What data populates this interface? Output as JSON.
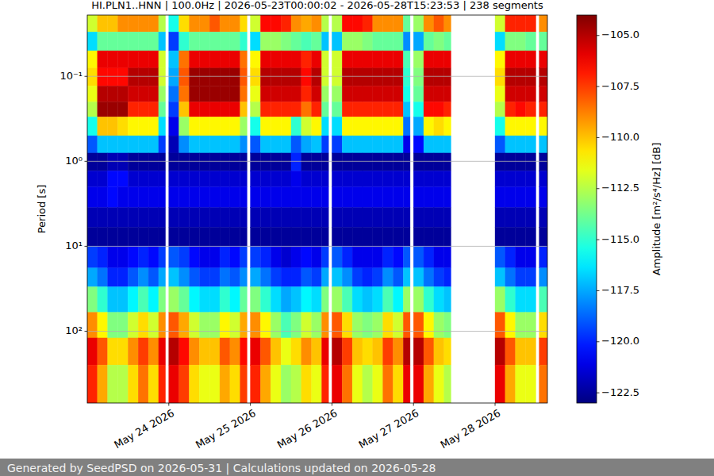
{
  "chart_data": {
    "type": "heatmap",
    "title": "HI.PLN1..HNN | 100.0Hz | 2026-05-23T00:00:02 - 2026-05-28T15:23:53 | 238 segments",
    "y_label": "Period [s]",
    "footer": "Generated by SeedPSD on 2026-05-31 | Calculations updated on 2026-05-28",
    "log": "y",
    "grid": true,
    "xlim": [
      "2026-05-23T00:00:02",
      "2026-05-28T15:23:53"
    ],
    "ylim": [
      0.019,
      700
    ],
    "xticks": [
      {
        "value": "2026-05-24T00:00:00",
        "label": "May 24 2026"
      },
      {
        "value": "2026-05-25T00:00:00",
        "label": "May 25 2026"
      },
      {
        "value": "2026-05-26T00:00:00",
        "label": "May 26 2026"
      },
      {
        "value": "2026-05-27T00:00:00",
        "label": "May 27 2026"
      },
      {
        "value": "2026-05-28T00:00:00",
        "label": "May 28 2026"
      }
    ],
    "yticks": [
      {
        "value": 0.1,
        "label": "10⁻¹"
      },
      {
        "value": 1,
        "label": "10⁰"
      },
      {
        "value": 10,
        "label": "10¹"
      },
      {
        "value": 100,
        "label": "10²"
      }
    ],
    "colorbar_label": "Amplitude [m²/s⁴/Hz] [dB]",
    "colorbar_range": [
      -123,
      -104
    ],
    "colorbar_ticks": [
      {
        "value": -105,
        "label": "−105.0"
      },
      {
        "value": -107.5,
        "label": "−107.5"
      },
      {
        "value": -110,
        "label": "−110.0"
      },
      {
        "value": -112.5,
        "label": "−112.5"
      },
      {
        "value": -115,
        "label": "−115.0"
      },
      {
        "value": -117.5,
        "label": "−117.5"
      },
      {
        "value": -120,
        "label": "−120.0"
      },
      {
        "value": -122.5,
        "label": "−122.5"
      }
    ],
    "x": [
      "2026-05-23T00:00:02",
      "2026-05-23T03:00:00",
      "2026-05-23T06:00:00",
      "2026-05-23T09:00:00",
      "2026-05-23T12:00:00",
      "2026-05-23T15:00:00",
      "2026-05-23T18:00:00",
      "2026-05-23T21:00:00",
      "2026-05-23T23:00:00",
      "2026-05-24T00:00:00",
      "2026-05-24T03:00:00",
      "2026-05-24T06:00:00",
      "2026-05-24T09:00:00",
      "2026-05-24T12:00:00",
      "2026-05-24T15:00:00",
      "2026-05-24T18:00:00",
      "2026-05-24T21:00:00",
      "2026-05-24T23:00:00",
      "2026-05-25T00:00:00",
      "2026-05-25T03:00:00",
      "2026-05-25T06:00:00",
      "2026-05-25T09:00:00",
      "2026-05-25T12:00:00",
      "2026-05-25T15:00:00",
      "2026-05-25T18:00:00",
      "2026-05-25T21:00:00",
      "2026-05-25T23:00:00",
      "2026-05-26T00:00:00",
      "2026-05-26T03:00:00",
      "2026-05-26T06:00:00",
      "2026-05-26T09:00:00",
      "2026-05-26T12:00:00",
      "2026-05-26T15:00:00",
      "2026-05-26T18:00:00",
      "2026-05-26T21:00:00",
      "2026-05-26T23:00:00",
      "2026-05-27T00:00:00",
      "2026-05-27T03:00:00",
      "2026-05-27T06:00:00",
      "2026-05-27T09:00:00",
      "2026-05-27T11:00:00",
      "2026-05-28T00:00:00",
      "2026-05-28T03:00:00",
      "2026-05-28T06:00:00",
      "2026-05-28T09:00:00",
      "2026-05-28T12:00:00",
      "2026-05-28T13:00:00",
      "2026-05-28T15:23:53"
    ],
    "y": [
      0.019,
      0.03,
      0.05,
      0.08,
      0.13,
      0.2,
      0.3,
      0.5,
      0.8,
      1.3,
      2,
      3.5,
      6,
      10,
      18,
      30,
      60,
      120,
      250,
      700
    ],
    "cells": [
      [
        -112,
        -110,
        -110,
        -109,
        -109,
        -109,
        -109,
        -112.5,
        null,
        -115.5,
        -110.5,
        -109,
        -109,
        -108,
        -109,
        -109,
        -110.5,
        null,
        -112,
        -106.5,
        -106.5,
        -107,
        -109,
        -109.5,
        -109,
        -112.5,
        null,
        -112.5,
        -106.5,
        -106.5,
        -107,
        -109,
        -109,
        -109,
        -114,
        null,
        -113,
        -109,
        -108,
        -109,
        null,
        -112,
        -107,
        -107,
        -107,
        null,
        -109
      ],
      [
        -116.5,
        -114,
        -114,
        -114,
        -114,
        -114,
        -114,
        -117,
        null,
        -119.5,
        -115,
        -114,
        -114,
        -114,
        -114,
        -114,
        -115,
        null,
        -116.5,
        -113,
        -113,
        -113.5,
        -114,
        -114.5,
        -114,
        -117,
        null,
        -117,
        -113,
        -113,
        -113.5,
        -114,
        -114,
        -114,
        -118,
        null,
        -117.5,
        -114,
        -113.5,
        -114,
        null,
        -116.5,
        -113.5,
        -113.5,
        -114,
        null,
        -114
      ],
      [
        -111,
        -106,
        -106,
        -106,
        -106,
        -106,
        -106,
        -112,
        null,
        -117,
        -108.5,
        -106,
        -106,
        -106,
        -106,
        -106,
        -108.5,
        null,
        -111,
        -106,
        -106,
        -106,
        -106,
        -107,
        -106,
        -112,
        null,
        -112,
        -106,
        -106,
        -106,
        -106,
        -106,
        -106,
        -114.5,
        null,
        -113,
        -106,
        -106,
        -106,
        null,
        -111,
        -106,
        -106,
        -106,
        null,
        -106
      ],
      [
        -110.5,
        -106.5,
        -106.5,
        -106.5,
        -105,
        -105,
        -105,
        -112,
        null,
        -117.5,
        -108,
        -104.5,
        -104.5,
        -104.5,
        -104.5,
        -104.5,
        -108,
        null,
        -110.5,
        -105,
        -105,
        -105,
        -105,
        -106.5,
        -105,
        -112,
        null,
        -112,
        -105,
        -105,
        -105,
        -105,
        -105,
        -105,
        -115,
        null,
        -113.5,
        -105,
        -105,
        -105,
        null,
        -110.5,
        -105,
        -105,
        -105,
        null,
        -105
      ],
      [
        -111.5,
        -105,
        -105,
        -105,
        -105.5,
        -105.5,
        -105.5,
        -113,
        null,
        -118.5,
        -108.5,
        -104.5,
        -104.5,
        -104.5,
        -104.5,
        -104.5,
        -108.5,
        null,
        -111.5,
        -105.5,
        -105.5,
        -105.5,
        -105.5,
        -107,
        -105.5,
        -113,
        null,
        -113,
        -105.5,
        -105.5,
        -105.5,
        -105.5,
        -105.5,
        -105.5,
        -115.5,
        null,
        -114,
        -105.5,
        -105.5,
        -105.5,
        null,
        -111.5,
        -105.5,
        -105.5,
        -105.5,
        null,
        -105.5
      ],
      [
        -112.5,
        -104.5,
        -104.5,
        -104.5,
        -107,
        -107,
        -107,
        -114,
        null,
        -119.5,
        -110,
        -106,
        -106,
        -106,
        -106,
        -106,
        -110,
        null,
        -112.5,
        -107,
        -107,
        -107,
        -107,
        -108.5,
        -107,
        -114,
        null,
        -114,
        -107,
        -107,
        -107,
        -107,
        -107,
        -107,
        -117,
        null,
        -115.5,
        -106.5,
        -106.5,
        -107,
        null,
        -112.5,
        -107,
        -106.5,
        -107,
        null,
        -107
      ],
      [
        -115.5,
        -110,
        -110,
        -110.5,
        -111,
        -111,
        -111,
        -116.5,
        null,
        -121,
        -113,
        -111,
        -111,
        -111,
        -111,
        -111,
        -113,
        null,
        -115.5,
        -111,
        -111,
        -111,
        -115,
        -112,
        -111,
        -116.5,
        null,
        -116.5,
        -111,
        -111,
        -111,
        -111,
        -111,
        -111,
        -118.5,
        null,
        -117.5,
        -111,
        -110.5,
        -111,
        null,
        -115.5,
        -111,
        -111,
        -111,
        null,
        -111
      ],
      [
        -119,
        -117,
        -117,
        -117,
        -117,
        -117,
        -117,
        -119.5,
        null,
        -122,
        -118,
        -117,
        -117,
        -117,
        -117,
        -117,
        -118,
        null,
        -119,
        -117,
        -117,
        -117,
        -119,
        -117.5,
        -117,
        -119.5,
        null,
        -119.5,
        -117,
        -117,
        -117,
        -117,
        -117,
        -117,
        -121,
        null,
        -120.5,
        -117,
        -117,
        -117,
        null,
        -119,
        -117,
        -117,
        -117,
        null,
        -117
      ],
      [
        -122.5,
        -122.5,
        -122,
        -122,
        -122.5,
        -122.5,
        -122.5,
        -122.5,
        null,
        -122.5,
        -122.5,
        -122.5,
        -122.5,
        -122.5,
        -122.5,
        -122.5,
        -122.5,
        null,
        -122.5,
        -122.5,
        -122.5,
        -122.5,
        -120,
        -122.5,
        -122.5,
        -122.5,
        null,
        -122.5,
        -122.5,
        -122.5,
        -122.5,
        -122.5,
        -122.5,
        -122.5,
        -122.5,
        null,
        -122.5,
        -122.5,
        -122.5,
        -122.5,
        null,
        -122.5,
        -122.5,
        -122.5,
        -122.5,
        null,
        -122.5
      ],
      [
        -121.5,
        -121.5,
        -120.5,
        -120.5,
        -121.5,
        -121.5,
        -121.5,
        -121.5,
        null,
        -121.5,
        -121.5,
        -121.5,
        -121.5,
        -121.5,
        -121.5,
        -121.5,
        -121.5,
        null,
        -121.5,
        -121.5,
        -121.5,
        -121.5,
        -121,
        -121.5,
        -121.5,
        -121.5,
        null,
        -121.5,
        -121.5,
        -121.5,
        -121.5,
        -121.5,
        -121.5,
        -121.5,
        -121.5,
        null,
        -121.5,
        -121.5,
        -121.5,
        -121.5,
        null,
        -121.5,
        -121.5,
        -121.5,
        -121.5,
        null,
        -121.5
      ],
      [
        -121,
        -121,
        -120.5,
        -121,
        -121,
        -121,
        -121,
        -121,
        null,
        -121,
        -121,
        -121,
        -121,
        -121,
        -121,
        -121,
        -121,
        null,
        -121,
        -121,
        -121,
        -121,
        -121,
        -121,
        -121,
        -121,
        null,
        -121,
        -121,
        -121,
        -121,
        -121,
        -121,
        -121,
        -121,
        null,
        -121,
        -121,
        -121,
        -121,
        null,
        -121,
        -121,
        -121,
        -121,
        null,
        -121
      ],
      [
        -122,
        -122,
        -122,
        -122,
        -122,
        -122,
        -122,
        -122,
        null,
        -122,
        -122,
        -122,
        -122,
        -122,
        -122,
        -122,
        -122,
        null,
        -122,
        -122,
        -122,
        -122,
        -122,
        -122,
        -122,
        -122,
        null,
        -122,
        -122,
        -122,
        -122,
        -122,
        -122,
        -122,
        -122,
        null,
        -122,
        -122,
        -122,
        -122,
        null,
        -122,
        -122,
        -122,
        -122,
        null,
        -122
      ],
      [
        -122.5,
        -122.5,
        -122.5,
        -122.5,
        -122.5,
        -122.5,
        -122.5,
        -122.5,
        null,
        -122.5,
        -122.5,
        -122.5,
        -122.5,
        -122.5,
        -122.5,
        -122.5,
        -122.5,
        null,
        -122.5,
        -122.5,
        -122.5,
        -122.5,
        -122.5,
        -122.5,
        -122.5,
        -122.5,
        null,
        -122.5,
        -122.5,
        -122.5,
        -122.5,
        -122.5,
        -122.5,
        -122.5,
        -122.5,
        null,
        -122.5,
        -122.5,
        -122.5,
        -122.5,
        null,
        -122.5,
        -122.5,
        -122.5,
        -122.5,
        null,
        -122.5
      ],
      [
        -119.5,
        -120,
        -121,
        -121,
        -120.5,
        -120,
        -120.5,
        -119.5,
        null,
        -119,
        -119.5,
        -120.5,
        -121,
        -121,
        -120,
        -120.5,
        -119.5,
        null,
        -119.5,
        -120,
        -121,
        -121.5,
        -121,
        -120.5,
        -121,
        -119.5,
        null,
        -119,
        -120,
        -121,
        -121,
        -121,
        -120,
        -120.5,
        -119,
        null,
        -119,
        -120,
        -121,
        -121,
        null,
        -119,
        -120,
        -121,
        -121,
        null,
        -120
      ],
      [
        -117.5,
        -118.5,
        -120,
        -120,
        -119,
        -118,
        -119,
        -117.5,
        null,
        -117,
        -118,
        -119,
        -119.5,
        -119.5,
        -118.5,
        -119,
        -118,
        null,
        -117.5,
        -118.5,
        -119.5,
        -120,
        -120,
        -119,
        -119.5,
        -117.5,
        null,
        -117,
        -118,
        -119.5,
        -120,
        -119.5,
        -118,
        -119,
        -117,
        null,
        -117,
        -118.5,
        -119.5,
        -120,
        null,
        -117,
        -118.5,
        -119.5,
        -119.5,
        null,
        -118
      ],
      [
        -113.5,
        -115,
        -117,
        -117,
        -116,
        -114.5,
        -116,
        -113.5,
        null,
        -113,
        -114,
        -116,
        -116.5,
        -116.5,
        -115,
        -116,
        -114,
        null,
        -113.5,
        -115,
        -116.5,
        -117.5,
        -117,
        -116,
        -116.5,
        -113.5,
        null,
        -113,
        -114.5,
        -116.5,
        -117,
        -116.5,
        -114.5,
        -116,
        -113,
        null,
        -113,
        -115,
        -116.5,
        -117,
        null,
        -113,
        -115,
        -116.5,
        -116.5,
        null,
        -114.5
      ],
      [
        -109,
        -111,
        -113.5,
        -113.5,
        -112,
        -110.5,
        -112,
        -109,
        null,
        -108,
        -109.5,
        -112,
        -113,
        -113,
        -111,
        -112,
        -109.5,
        null,
        -109,
        -111,
        -113,
        -114.5,
        -113.5,
        -112,
        -113,
        -109,
        null,
        -108,
        -110.5,
        -113,
        -113.5,
        -113,
        -110.5,
        -112,
        -108,
        null,
        -108,
        -111,
        -113,
        -113.5,
        null,
        -108,
        -111,
        -113,
        -113,
        null,
        -110.5
      ],
      [
        -106,
        -108,
        -110.5,
        -110.5,
        -109,
        -107.5,
        -109,
        -106,
        null,
        -105,
        -106.5,
        -109,
        -110,
        -110,
        -108,
        -109,
        -106.5,
        null,
        -106,
        -108,
        -110,
        -111.5,
        -110.5,
        -109,
        -110,
        -106,
        null,
        -105,
        -107.5,
        -110,
        -110.5,
        -110,
        -107.5,
        -109,
        -105,
        null,
        -105,
        -108,
        -110,
        -110.5,
        null,
        -105,
        -108,
        -110,
        -110,
        null,
        -107.5
      ],
      [
        -107,
        -109.5,
        -112.5,
        -112.5,
        -110.5,
        -108.5,
        -110.5,
        -107,
        null,
        -106,
        -107.5,
        -110.5,
        -111.5,
        -111.5,
        -109.5,
        -110.5,
        -107.5,
        null,
        -107,
        -109.5,
        -111.5,
        -113,
        -112.5,
        -110.5,
        -111.5,
        -107,
        null,
        -106,
        -108.5,
        -111.5,
        -112.5,
        -111.5,
        -108.5,
        -110.5,
        -106,
        null,
        -106,
        -109.5,
        -111.5,
        -112.5,
        null,
        -106,
        -109.5,
        -111.5,
        -111.5,
        null,
        -108.5
      ]
    ]
  }
}
